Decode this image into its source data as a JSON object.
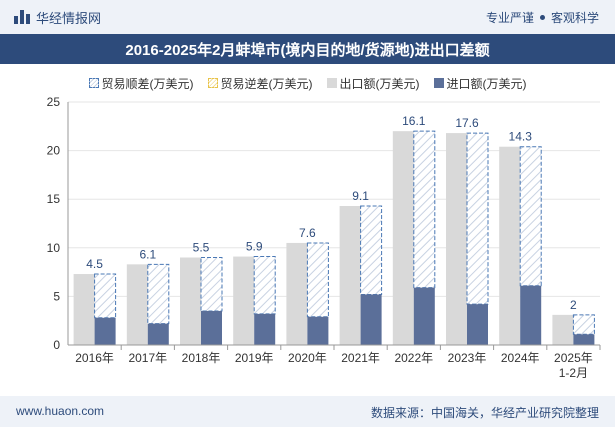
{
  "header": {
    "brand": "华经情报网",
    "tag1": "专业严谨",
    "tag2": "客观科学"
  },
  "chart_data": {
    "type": "bar",
    "title": "2016-2025年2月蚌埠市(境内目的地/货源地)进出口差额",
    "legend": [
      "贸易顺差(万美元)",
      "贸易逆差(万美元)",
      "出口额(万美元)",
      "进口额(万美元)"
    ],
    "categories": [
      "2016年",
      "2017年",
      "2018年",
      "2019年",
      "2020年",
      "2021年",
      "2022年",
      "2023年",
      "2024年",
      "2025年\n1-2月"
    ],
    "series": [
      {
        "name": "出口额(万美元)",
        "values": [
          7.3,
          8.3,
          9.0,
          9.1,
          10.5,
          14.3,
          22.0,
          21.8,
          20.4,
          3.1
        ]
      },
      {
        "name": "进口额(万美元)",
        "values": [
          2.8,
          2.2,
          3.5,
          3.2,
          2.9,
          5.2,
          5.9,
          4.2,
          6.1,
          1.1
        ]
      },
      {
        "name": "贸易顺差(万美元)",
        "values": [
          4.5,
          6.1,
          5.5,
          5.9,
          7.6,
          9.1,
          16.1,
          17.6,
          14.3,
          2
        ]
      }
    ],
    "data_labels": [
      "4.5",
      "6.1",
      "5.5",
      "5.9",
      "7.6",
      "9.1",
      "16.1",
      "17.6",
      "14.3",
      "2"
    ],
    "ylim": [
      0,
      25
    ],
    "yticks": [
      0,
      5,
      10,
      15,
      20,
      25
    ],
    "ytick_labels": [
      "0",
      "5",
      "10",
      "15",
      "20",
      "25"
    ],
    "legend_position": "top",
    "colors": {
      "export": "#d9d9d9",
      "import": "#5b6f99",
      "surplus_border": "#4a78b5",
      "deficit_border": "#e8c34a",
      "label": "#2d4b7b"
    }
  },
  "footer": {
    "site": "www.huaon.com",
    "source": "数据来源：中国海关，华经产业研究院整理"
  }
}
